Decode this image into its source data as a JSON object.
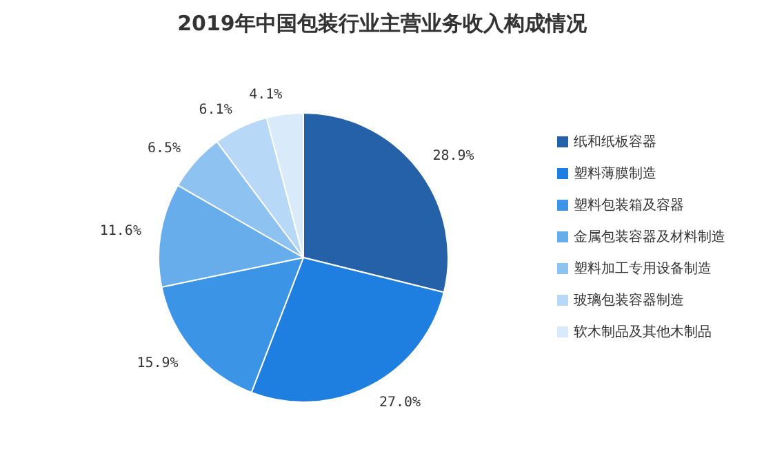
{
  "chart_data": {
    "type": "pie",
    "title": "2019年中国包装行业主营业务收入构成情况",
    "categories": [
      "纸和纸板容器",
      "塑料薄膜制造",
      "塑料包装箱及容器",
      "金属包装容器及材料制造",
      "塑料加工专用设备制造",
      "玻璃包装容器制造",
      "软木制品及其他木制品"
    ],
    "values": [
      28.9,
      27.0,
      15.9,
      11.6,
      6.5,
      6.1,
      4.1
    ],
    "value_labels": [
      "28.9%",
      "27.0%",
      "15.9%",
      "11.6%",
      "6.5%",
      "6.1%",
      "4.1%"
    ],
    "colors": [
      "#2561a8",
      "#1e7fe0",
      "#3b94e6",
      "#67aceb",
      "#8ec2f0",
      "#b7d8f6",
      "#d9ebfb"
    ],
    "legend": "right"
  }
}
